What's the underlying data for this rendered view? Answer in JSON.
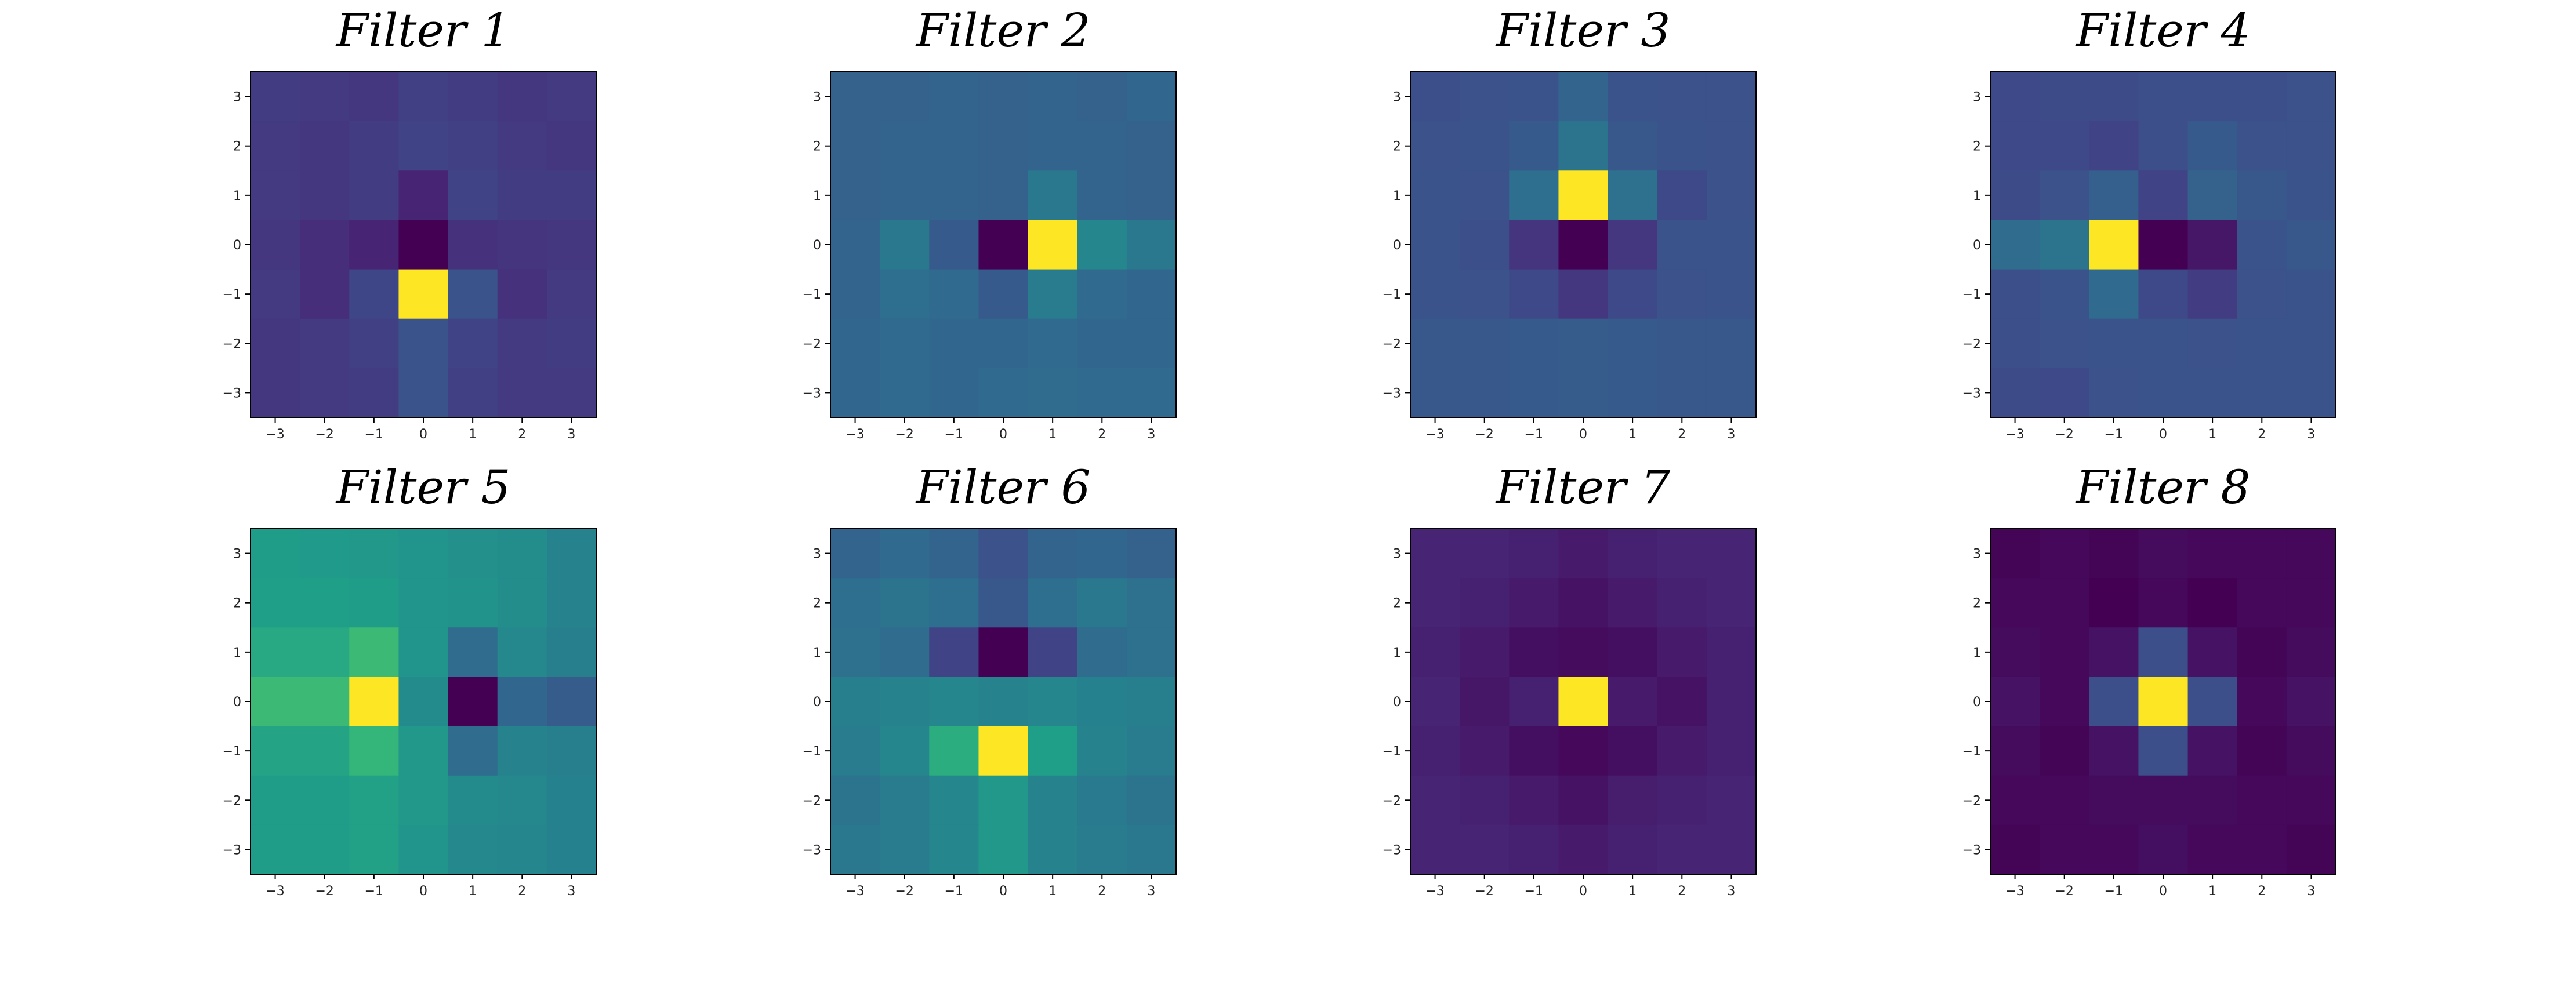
{
  "chart_data": {
    "type": "heatmap",
    "colormap": "viridis",
    "color_range": [
      0,
      1
    ],
    "x_ticks": [
      "−3",
      "−2",
      "−1",
      "0",
      "1",
      "2",
      "3"
    ],
    "y_ticks": [
      "3",
      "2",
      "1",
      "0",
      "−1",
      "−2",
      "−3"
    ],
    "x_range": [
      -3.5,
      3.5
    ],
    "y_range": [
      -3.5,
      3.5
    ],
    "grid": false,
    "panels": [
      {
        "title": "Filter 1",
        "rows_top_to_bottom": [
          [
            0.18,
            0.17,
            0.16,
            0.19,
            0.18,
            0.16,
            0.17
          ],
          [
            0.17,
            0.16,
            0.18,
            0.2,
            0.19,
            0.17,
            0.16
          ],
          [
            0.17,
            0.16,
            0.18,
            0.1,
            0.2,
            0.18,
            0.18
          ],
          [
            0.16,
            0.13,
            0.1,
            0.0,
            0.14,
            0.15,
            0.16
          ],
          [
            0.17,
            0.13,
            0.21,
            1.0,
            0.26,
            0.14,
            0.17
          ],
          [
            0.16,
            0.17,
            0.19,
            0.26,
            0.2,
            0.17,
            0.18
          ],
          [
            0.16,
            0.17,
            0.18,
            0.26,
            0.19,
            0.17,
            0.17
          ]
        ]
      },
      {
        "title": "Filter 2",
        "rows_top_to_bottom": [
          [
            0.31,
            0.31,
            0.32,
            0.31,
            0.32,
            0.31,
            0.33
          ],
          [
            0.31,
            0.32,
            0.32,
            0.31,
            0.32,
            0.32,
            0.31
          ],
          [
            0.31,
            0.32,
            0.32,
            0.31,
            0.4,
            0.32,
            0.31
          ],
          [
            0.32,
            0.4,
            0.28,
            0.0,
            1.0,
            0.46,
            0.4
          ],
          [
            0.32,
            0.36,
            0.34,
            0.28,
            0.42,
            0.34,
            0.33
          ],
          [
            0.33,
            0.34,
            0.33,
            0.33,
            0.34,
            0.33,
            0.33
          ],
          [
            0.33,
            0.34,
            0.33,
            0.34,
            0.35,
            0.34,
            0.34
          ]
        ]
      },
      {
        "title": "Filter 3",
        "rows_top_to_bottom": [
          [
            0.24,
            0.25,
            0.26,
            0.32,
            0.26,
            0.25,
            0.25
          ],
          [
            0.25,
            0.26,
            0.28,
            0.38,
            0.27,
            0.26,
            0.25
          ],
          [
            0.26,
            0.25,
            0.36,
            1.0,
            0.37,
            0.22,
            0.25
          ],
          [
            0.26,
            0.24,
            0.15,
            0.0,
            0.16,
            0.26,
            0.26
          ],
          [
            0.26,
            0.25,
            0.22,
            0.16,
            0.22,
            0.25,
            0.26
          ],
          [
            0.27,
            0.27,
            0.28,
            0.29,
            0.28,
            0.27,
            0.27
          ],
          [
            0.27,
            0.27,
            0.28,
            0.29,
            0.28,
            0.27,
            0.27
          ]
        ]
      },
      {
        "title": "Filter 4",
        "rows_top_to_bottom": [
          [
            0.22,
            0.23,
            0.23,
            0.24,
            0.24,
            0.24,
            0.25
          ],
          [
            0.22,
            0.22,
            0.2,
            0.24,
            0.28,
            0.25,
            0.25
          ],
          [
            0.23,
            0.25,
            0.3,
            0.2,
            0.31,
            0.27,
            0.26
          ],
          [
            0.35,
            0.38,
            1.0,
            0.0,
            0.06,
            0.26,
            0.27
          ],
          [
            0.24,
            0.26,
            0.34,
            0.22,
            0.18,
            0.25,
            0.26
          ],
          [
            0.24,
            0.25,
            0.26,
            0.26,
            0.25,
            0.26,
            0.26
          ],
          [
            0.23,
            0.22,
            0.25,
            0.26,
            0.26,
            0.26,
            0.26
          ]
        ]
      },
      {
        "title": "Filter 5",
        "rows_top_to_bottom": [
          [
            0.55,
            0.54,
            0.53,
            0.52,
            0.5,
            0.49,
            0.45
          ],
          [
            0.56,
            0.56,
            0.55,
            0.52,
            0.51,
            0.49,
            0.45
          ],
          [
            0.6,
            0.6,
            0.68,
            0.52,
            0.35,
            0.47,
            0.43
          ],
          [
            0.68,
            0.68,
            1.0,
            0.48,
            0.0,
            0.33,
            0.29
          ],
          [
            0.58,
            0.58,
            0.66,
            0.53,
            0.35,
            0.45,
            0.43
          ],
          [
            0.55,
            0.55,
            0.57,
            0.53,
            0.48,
            0.47,
            0.44
          ],
          [
            0.55,
            0.55,
            0.57,
            0.52,
            0.47,
            0.46,
            0.44
          ]
        ]
      },
      {
        "title": "Filter 6",
        "rows_top_to_bottom": [
          [
            0.32,
            0.34,
            0.32,
            0.25,
            0.32,
            0.33,
            0.31
          ],
          [
            0.36,
            0.38,
            0.36,
            0.27,
            0.36,
            0.4,
            0.37
          ],
          [
            0.37,
            0.35,
            0.2,
            0.0,
            0.2,
            0.35,
            0.37
          ],
          [
            0.43,
            0.45,
            0.46,
            0.45,
            0.46,
            0.44,
            0.43
          ],
          [
            0.42,
            0.46,
            0.62,
            1.0,
            0.56,
            0.45,
            0.42
          ],
          [
            0.38,
            0.42,
            0.46,
            0.53,
            0.45,
            0.41,
            0.38
          ],
          [
            0.4,
            0.42,
            0.46,
            0.53,
            0.45,
            0.42,
            0.4
          ]
        ]
      },
      {
        "title": "Filter 7",
        "rows_top_to_bottom": [
          [
            0.1,
            0.1,
            0.09,
            0.07,
            0.09,
            0.1,
            0.1
          ],
          [
            0.1,
            0.09,
            0.07,
            0.05,
            0.07,
            0.09,
            0.1
          ],
          [
            0.09,
            0.07,
            0.04,
            0.03,
            0.04,
            0.07,
            0.09
          ],
          [
            0.1,
            0.06,
            0.09,
            1.0,
            0.07,
            0.05,
            0.09
          ],
          [
            0.09,
            0.07,
            0.04,
            0.02,
            0.04,
            0.07,
            0.09
          ],
          [
            0.1,
            0.09,
            0.07,
            0.05,
            0.08,
            0.09,
            0.1
          ],
          [
            0.1,
            0.1,
            0.09,
            0.07,
            0.09,
            0.1,
            0.1
          ]
        ]
      },
      {
        "title": "Filter 8",
        "rows_top_to_bottom": [
          [
            0.01,
            0.02,
            0.01,
            0.03,
            0.02,
            0.02,
            0.02
          ],
          [
            0.02,
            0.02,
            0.0,
            0.02,
            0.0,
            0.02,
            0.02
          ],
          [
            0.03,
            0.02,
            0.05,
            0.24,
            0.05,
            0.01,
            0.03
          ],
          [
            0.05,
            0.02,
            0.24,
            1.0,
            0.24,
            0.02,
            0.05
          ],
          [
            0.03,
            0.01,
            0.05,
            0.24,
            0.05,
            0.01,
            0.03
          ],
          [
            0.02,
            0.02,
            0.03,
            0.03,
            0.03,
            0.02,
            0.02
          ],
          [
            0.01,
            0.02,
            0.02,
            0.04,
            0.02,
            0.02,
            0.01
          ]
        ]
      }
    ]
  }
}
